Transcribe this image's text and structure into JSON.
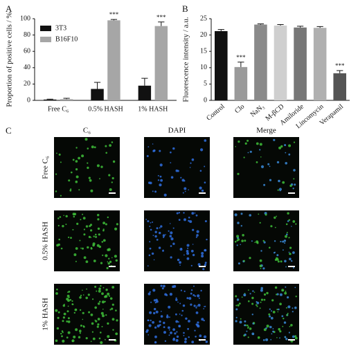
{
  "chart_data": [
    {
      "type": "bar",
      "label": "A",
      "ylabel": "Proportion of positive cells / %",
      "categories": [
        "Free C₆",
        "0.5% HASH",
        "1% HASH"
      ],
      "series": [
        {
          "name": "3T3",
          "color": "#111111",
          "values": [
            1,
            14,
            18
          ],
          "errors": [
            0.5,
            8,
            9
          ],
          "significance": [
            null,
            null,
            null
          ]
        },
        {
          "name": "B16F10",
          "color": "#a6a6a6",
          "values": [
            1.5,
            98,
            91
          ],
          "errors": [
            1,
            1,
            5
          ],
          "significance": [
            null,
            "***",
            "***"
          ]
        }
      ],
      "ylim": [
        0,
        100
      ],
      "yticks": [
        0,
        20,
        40,
        60,
        80,
        100
      ],
      "legend": "upper left"
    },
    {
      "type": "bar",
      "label": "B",
      "ylabel": "Fluorescence intensity / a.u.",
      "categories": [
        "Control",
        "Clo",
        "NaN₃",
        "M-βCD",
        "Amiloride",
        "Lincomycin",
        "Verapamil"
      ],
      "values": [
        21.2,
        10.2,
        23.2,
        22.9,
        22.3,
        22.2,
        8.3
      ],
      "errors": [
        0.5,
        1.5,
        0.2,
        0.3,
        0.4,
        0.4,
        0.8
      ],
      "significance": [
        null,
        "***",
        null,
        null,
        null,
        null,
        "***"
      ],
      "colors": [
        "#111111",
        "#9a9a9a",
        "#8a8a8a",
        "#cfcfcf",
        "#777777",
        "#b0b0b0",
        "#555555"
      ],
      "ylim": [
        0,
        25
      ],
      "yticks": [
        0,
        5,
        10,
        15,
        20,
        25
      ]
    }
  ],
  "panel_c": {
    "label": "C",
    "columns": [
      "C₆",
      "DAPI",
      "Merge"
    ],
    "rows": [
      "Free C₆",
      "0.5% HASH",
      "1% HASH"
    ]
  }
}
